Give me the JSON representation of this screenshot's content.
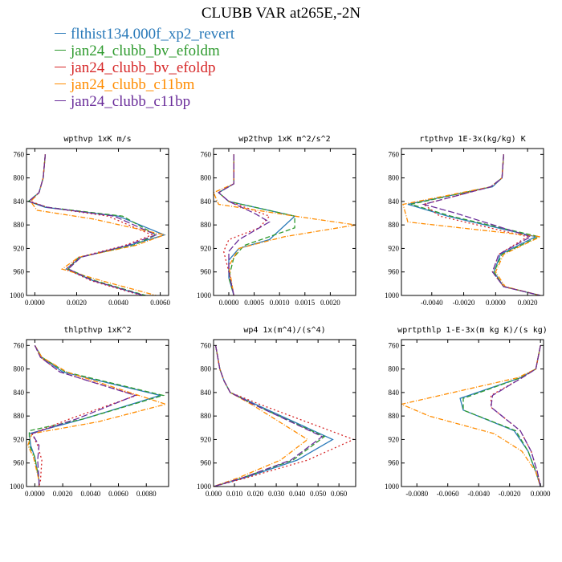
{
  "title": "CLUBB VAR at265E,-2N",
  "legend": [
    {
      "name": "flthist134.000f_xp2_revert",
      "color": "#2a7ab9",
      "dash": ""
    },
    {
      "name": "jan24_clubb_bv_efoldm",
      "color": "#2e9a2e",
      "dash": "6,3"
    },
    {
      "name": "jan24_clubb_bv_efoldp",
      "color": "#d62728",
      "dash": "2,3"
    },
    {
      "name": "jan24_clubb_c11bm",
      "color": "#ff8c00",
      "dash": "6,2,1,2"
    },
    {
      "name": "jan24_clubb_c11bp",
      "color": "#6a2d9a",
      "dash": "8,3"
    }
  ],
  "chart_data": [
    {
      "type": "line",
      "title": "wpthvp   1xK m/s",
      "xlim": [
        -0.0004,
        0.0064
      ],
      "ylim": [
        1000,
        750
      ],
      "xticks": [
        0.0,
        0.002,
        0.004,
        0.006
      ],
      "xtick_labels": [
        "0.0000",
        "0.0020",
        "0.0040",
        "0.0060"
      ],
      "yticks": [
        760,
        800,
        840,
        880,
        920,
        960,
        1000
      ],
      "series": [
        {
          "name": "flthist134.000f_xp2_revert",
          "x": [
            0.0005,
            0.0004,
            0.0002,
            -0.0003,
            0.0005,
            0.004,
            0.0062,
            0.0045,
            0.0022,
            0.0015,
            0.0028,
            0.0052
          ],
          "y": [
            760,
            800,
            825,
            840,
            850,
            865,
            897,
            915,
            935,
            955,
            975,
            1000
          ]
        },
        {
          "name": "jan24_clubb_bv_efoldm",
          "x": [
            0.0005,
            0.0004,
            0.0002,
            -0.0003,
            0.0006,
            0.0042,
            0.0058,
            0.0047,
            0.0021,
            0.0016,
            0.0029,
            0.0053
          ],
          "y": [
            760,
            800,
            825,
            840,
            850,
            865,
            897,
            915,
            935,
            955,
            975,
            1000
          ]
        },
        {
          "name": "jan24_clubb_bv_efoldp",
          "x": [
            0.0005,
            0.0004,
            0.0002,
            -0.0002,
            0.0006,
            0.0035,
            0.0056,
            0.0043,
            0.0021,
            0.0015,
            0.0027,
            0.0051
          ],
          "y": [
            760,
            800,
            825,
            840,
            850,
            865,
            897,
            915,
            935,
            955,
            975,
            1000
          ]
        },
        {
          "name": "jan24_clubb_c11bm",
          "x": [
            0.0005,
            0.0004,
            0.0002,
            -0.0002,
            0.0001,
            0.0028,
            0.0062,
            0.0048,
            0.0021,
            0.0013,
            0.0032,
            0.0058
          ],
          "y": [
            760,
            800,
            825,
            840,
            855,
            870,
            897,
            915,
            935,
            955,
            975,
            1000
          ]
        },
        {
          "name": "jan24_clubb_c11bp",
          "x": [
            0.0005,
            0.0004,
            0.0002,
            -0.0003,
            0.0006,
            0.0038,
            0.0058,
            0.0044,
            0.0022,
            0.0016,
            0.0028,
            0.0052
          ],
          "y": [
            760,
            800,
            825,
            840,
            850,
            865,
            897,
            915,
            935,
            955,
            975,
            1000
          ]
        }
      ]
    },
    {
      "type": "line",
      "title": "wp2thvp   1xK m^2/s^2",
      "xlim": [
        -0.0003,
        0.0025
      ],
      "ylim": [
        1000,
        750
      ],
      "xticks": [
        0.0,
        0.0005,
        0.001,
        0.0015,
        0.002
      ],
      "xtick_labels": [
        "0.0000",
        "0.0005",
        "0.0010",
        "0.0015",
        "0.0020"
      ],
      "yticks": [
        760,
        800,
        840,
        880,
        920,
        960,
        1000
      ],
      "series": [
        {
          "name": "flthist134.000f_xp2_revert",
          "x": [
            0.0001,
            0.0001,
            -0.0002,
            0.0,
            0.0013,
            0.0008,
            0.0002,
            0.0,
            0.0,
            0.0001
          ],
          "y": [
            760,
            810,
            825,
            840,
            865,
            905,
            920,
            940,
            970,
            1000
          ]
        },
        {
          "name": "jan24_clubb_bv_efoldm",
          "x": [
            0.0001,
            0.0001,
            -0.0002,
            0.0,
            0.0013,
            0.0013,
            0.0003,
            0.0001,
            0.0,
            0.0001
          ],
          "y": [
            760,
            810,
            825,
            840,
            865,
            885,
            915,
            935,
            970,
            1000
          ]
        },
        {
          "name": "jan24_clubb_bv_efoldp",
          "x": [
            0.0001,
            0.0001,
            -0.0002,
            0.0,
            0.0008,
            0.0006,
            0.0,
            -0.0001,
            0.0,
            0.0001
          ],
          "y": [
            760,
            810,
            825,
            840,
            865,
            885,
            905,
            925,
            960,
            1000
          ]
        },
        {
          "name": "jan24_clubb_c11bm",
          "x": [
            0.0001,
            0.0001,
            -0.0003,
            -0.0002,
            0.0013,
            0.0025,
            0.0011,
            0.0002,
            0.0,
            0.0001
          ],
          "y": [
            760,
            810,
            825,
            845,
            865,
            880,
            900,
            920,
            950,
            1000
          ]
        },
        {
          "name": "jan24_clubb_c11bp",
          "x": [
            0.0001,
            0.0001,
            -0.0002,
            0.0,
            0.0005,
            0.0008,
            0.0002,
            0.0,
            0.0,
            0.0001
          ],
          "y": [
            760,
            810,
            825,
            840,
            860,
            875,
            905,
            925,
            960,
            1000
          ]
        }
      ]
    },
    {
      "type": "line",
      "title": "rtpthvp   1E-3x(kg/kg) K",
      "xlim": [
        -0.0059,
        0.003
      ],
      "ylim": [
        1000,
        750
      ],
      "xticks": [
        -0.004,
        -0.002,
        0.0,
        0.002
      ],
      "xtick_labels": [
        "-0.0040",
        "-0.0020",
        "0.0000",
        "0.0020"
      ],
      "yticks": [
        760,
        800,
        840,
        880,
        920,
        960,
        1000
      ],
      "series": [
        {
          "name": "flthist134.000f_xp2_revert",
          "x": [
            0.0005,
            0.0004,
            -0.0002,
            -0.0055,
            -0.003,
            0.0025,
            0.0003,
            -0.0001,
            0.0005,
            0.0028
          ],
          "y": [
            760,
            800,
            815,
            845,
            865,
            900,
            930,
            960,
            985,
            1000
          ]
        },
        {
          "name": "jan24_clubb_bv_efoldm",
          "x": [
            0.0005,
            0.0004,
            -0.0003,
            -0.0053,
            -0.0028,
            0.0027,
            0.0004,
            -0.0001,
            0.0005,
            0.0028
          ],
          "y": [
            760,
            800,
            815,
            845,
            865,
            900,
            930,
            960,
            985,
            1000
          ]
        },
        {
          "name": "jan24_clubb_bv_efoldp",
          "x": [
            0.0005,
            0.0004,
            -0.0003,
            -0.0045,
            -0.0035,
            0.002,
            0.0002,
            -0.0002,
            0.0005,
            0.0028
          ],
          "y": [
            760,
            800,
            815,
            845,
            865,
            900,
            930,
            960,
            985,
            1000
          ]
        },
        {
          "name": "jan24_clubb_c11bm",
          "x": [
            0.0005,
            0.0004,
            -0.0003,
            -0.0058,
            -0.0055,
            0.0028,
            0.0005,
            0.0,
            0.0006,
            0.0028
          ],
          "y": [
            760,
            800,
            815,
            845,
            875,
            900,
            930,
            960,
            985,
            1000
          ]
        },
        {
          "name": "jan24_clubb_c11bp",
          "x": [
            0.0005,
            0.0004,
            -0.0003,
            -0.0045,
            -0.0025,
            0.0022,
            0.0002,
            -0.0002,
            0.0005,
            0.0028
          ],
          "y": [
            760,
            800,
            815,
            845,
            860,
            900,
            930,
            960,
            985,
            1000
          ]
        }
      ]
    },
    {
      "type": "line",
      "title": "thlpthvp   1xK^2",
      "xlim": [
        -0.0006,
        0.0096
      ],
      "ylim": [
        1000,
        750
      ],
      "xticks": [
        0.0,
        0.002,
        0.004,
        0.006,
        0.008
      ],
      "xtick_labels": [
        "0.0000",
        "0.0020",
        "0.0040",
        "0.0060",
        "0.0080"
      ],
      "yticks": [
        760,
        800,
        840,
        880,
        920,
        960,
        1000
      ],
      "series": [
        {
          "name": "flthist134.000f_xp2_revert",
          "x": [
            0.0,
            0.0005,
            0.002,
            0.009,
            0.0035,
            -0.0004,
            -0.0003,
            0.0,
            0.0003,
            0.0003
          ],
          "y": [
            760,
            780,
            805,
            845,
            885,
            910,
            930,
            950,
            990,
            1000
          ]
        },
        {
          "name": "jan24_clubb_bv_efoldm",
          "x": [
            0.0,
            0.0005,
            0.0022,
            0.0092,
            0.0035,
            -0.0004,
            -0.0004,
            0.0,
            0.0003,
            0.0003
          ],
          "y": [
            760,
            780,
            805,
            845,
            885,
            905,
            930,
            950,
            990,
            1000
          ]
        },
        {
          "name": "jan24_clubb_bv_efoldp",
          "x": [
            0.0,
            0.0004,
            0.0018,
            0.0073,
            0.0025,
            -0.0002,
            0.0002,
            0.0005,
            0.0004,
            0.0003
          ],
          "y": [
            760,
            780,
            805,
            845,
            885,
            910,
            930,
            955,
            990,
            1000
          ]
        },
        {
          "name": "jan24_clubb_c11bm",
          "x": [
            0.0,
            0.0005,
            0.0023,
            0.0094,
            0.0045,
            -0.0002,
            -0.0005,
            -0.0001,
            0.0003,
            0.0003
          ],
          "y": [
            760,
            780,
            805,
            860,
            890,
            910,
            930,
            950,
            990,
            1000
          ]
        },
        {
          "name": "jan24_clubb_c11bp",
          "x": [
            0.0,
            0.0004,
            0.0018,
            0.0072,
            0.003,
            -0.0002,
            0.0003,
            0.0002,
            0.0003,
            0.0003
          ],
          "y": [
            760,
            780,
            805,
            845,
            885,
            910,
            930,
            955,
            990,
            1000
          ]
        }
      ]
    },
    {
      "type": "line",
      "title": "wp4   1x(m^4)/(s^4)",
      "xlim": [
        0.0,
        0.068
      ],
      "ylim": [
        1000,
        750
      ],
      "xticks": [
        0.0,
        0.01,
        0.02,
        0.03,
        0.04,
        0.05,
        0.06
      ],
      "xtick_labels": [
        "0.000",
        "0.010",
        "0.020",
        "0.030",
        "0.040",
        "0.050",
        "0.060"
      ],
      "yticks": [
        760,
        800,
        840,
        880,
        920,
        960,
        1000
      ],
      "series": [
        {
          "name": "flthist134.000f_xp2_revert",
          "x": [
            0.001,
            0.003,
            0.005,
            0.008,
            0.02,
            0.057,
            0.04,
            0.015,
            0.0
          ],
          "y": [
            760,
            800,
            820,
            840,
            860,
            920,
            955,
            985,
            1000
          ]
        },
        {
          "name": "jan24_clubb_bv_efoldm",
          "x": [
            0.001,
            0.003,
            0.005,
            0.008,
            0.019,
            0.053,
            0.038,
            0.014,
            0.0
          ],
          "y": [
            760,
            800,
            820,
            840,
            860,
            915,
            955,
            985,
            1000
          ]
        },
        {
          "name": "jan24_clubb_bv_efoldp",
          "x": [
            0.001,
            0.003,
            0.005,
            0.008,
            0.022,
            0.067,
            0.045,
            0.016,
            0.0
          ],
          "y": [
            760,
            800,
            820,
            840,
            860,
            920,
            955,
            985,
            1000
          ]
        },
        {
          "name": "jan24_clubb_c11bm",
          "x": [
            0.001,
            0.003,
            0.005,
            0.008,
            0.018,
            0.045,
            0.032,
            0.012,
            0.0
          ],
          "y": [
            760,
            800,
            820,
            840,
            860,
            920,
            955,
            985,
            1000
          ]
        },
        {
          "name": "jan24_clubb_c11bp",
          "x": [
            0.001,
            0.003,
            0.005,
            0.008,
            0.019,
            0.052,
            0.037,
            0.014,
            0.0
          ],
          "y": [
            760,
            800,
            820,
            840,
            860,
            915,
            955,
            985,
            1000
          ]
        }
      ]
    },
    {
      "type": "line",
      "title": "wprtpthlp   1-E-3x(m kg K)/(s kg)",
      "xlim": [
        -0.009,
        0.0002
      ],
      "ylim": [
        1000,
        750
      ],
      "xticks": [
        -0.008,
        -0.006,
        -0.004,
        -0.002,
        0.0
      ],
      "xtick_labels": [
        "-0.0080",
        "-0.0060",
        "-0.0040",
        "-0.0020",
        "0.0000"
      ],
      "yticks": [
        760,
        800,
        840,
        880,
        920,
        960,
        1000
      ],
      "series": [
        {
          "name": "flthist134.000f_xp2_revert",
          "x": [
            0.0,
            -0.0003,
            -0.0013,
            -0.0052,
            -0.005,
            -0.0017,
            -0.0008,
            -0.0003,
            0.0
          ],
          "y": [
            760,
            800,
            815,
            850,
            870,
            905,
            940,
            975,
            1000
          ]
        },
        {
          "name": "jan24_clubb_bv_efoldm",
          "x": [
            0.0,
            -0.0003,
            -0.0013,
            -0.005,
            -0.005,
            -0.0016,
            -0.0008,
            -0.0003,
            0.0
          ],
          "y": [
            760,
            800,
            815,
            850,
            870,
            905,
            940,
            975,
            1000
          ]
        },
        {
          "name": "jan24_clubb_bv_efoldp",
          "x": [
            0.0,
            -0.0003,
            -0.0012,
            -0.0032,
            -0.0032,
            -0.0013,
            -0.0006,
            -0.0002,
            0.0
          ],
          "y": [
            760,
            800,
            815,
            845,
            865,
            905,
            940,
            975,
            1000
          ]
        },
        {
          "name": "jan24_clubb_c11bm",
          "x": [
            0.0,
            -0.0003,
            -0.0015,
            -0.009,
            -0.0072,
            -0.003,
            -0.0012,
            -0.0003,
            0.0
          ],
          "y": [
            760,
            800,
            815,
            860,
            880,
            910,
            940,
            975,
            1000
          ]
        },
        {
          "name": "jan24_clubb_c11bp",
          "x": [
            0.0,
            -0.0003,
            -0.0012,
            -0.0031,
            -0.0032,
            -0.0013,
            -0.0006,
            -0.0002,
            0.0
          ],
          "y": [
            760,
            800,
            815,
            845,
            865,
            905,
            940,
            975,
            1000
          ]
        }
      ]
    }
  ]
}
